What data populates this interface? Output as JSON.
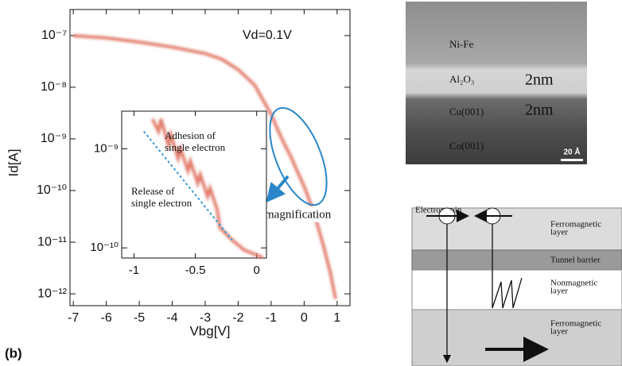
{
  "chart_data": [
    {
      "type": "line",
      "log_y": true,
      "xlabel": "Vbg[V]",
      "ylabel": "Id[A]",
      "annotations": [
        "Vd=0.1V",
        "magnification"
      ],
      "panel_label": "(b)",
      "xlim": [
        -7.1,
        1.39
      ],
      "xticks": [
        -7,
        -6,
        -5,
        -4,
        -3,
        -2,
        -1,
        0,
        1
      ],
      "ylim": [
        3.2e-07,
        5.9e-13
      ],
      "yticks": [
        {
          "value": 1e-07,
          "label": "10⁻⁷"
        },
        {
          "value": 1e-08,
          "label": "10⁻⁸"
        },
        {
          "value": 1e-09,
          "label": "10⁻⁹"
        },
        {
          "value": 1e-10,
          "label": "10⁻¹⁰"
        },
        {
          "value": 1e-11,
          "label": "10⁻¹¹"
        },
        {
          "value": 1e-12,
          "label": "10⁻¹²"
        }
      ],
      "series": [
        {
          "color": "#e27d6c",
          "dashed": false,
          "x": [
            -7,
            -6,
            -5,
            -4,
            -3,
            -2.5,
            -2,
            -1.5,
            -1.2,
            -1,
            -0.8,
            -0.6,
            -0.4,
            -0.2,
            0,
            0.2,
            0.4,
            0.6,
            0.8,
            0.95
          ],
          "values": [
            1e-07,
            9e-08,
            7.5e-08,
            6e-08,
            4.5e-08,
            3.5e-08,
            2.2e-08,
            1.1e-08,
            5e-09,
            3e-09,
            1.5e-09,
            8e-10,
            4.5e-10,
            2.3e-10,
            1.2e-10,
            5.5e-11,
            2.2e-11,
            8e-12,
            2.5e-12,
            8e-13
          ]
        }
      ]
    },
    {
      "type": "line",
      "log_y": true,
      "annotations": [
        [
          "Adhesion of",
          "single electron"
        ],
        [
          "Release of",
          "single electron"
        ]
      ],
      "xlim": [
        -1.1,
        0.08
      ],
      "xticks": [
        -1,
        -0.5,
        0
      ],
      "ylim": [
        2.4e-09,
        7.9e-11
      ],
      "yticks": [
        {
          "value": 1e-09,
          "label": "10⁻⁹"
        },
        {
          "value": 1e-10,
          "label": "10⁻¹⁰"
        }
      ],
      "series": [
        {
          "color": "#e27d6c",
          "dashed": false,
          "x": [
            -0.85,
            -0.8,
            -0.78,
            -0.72,
            -0.7,
            -0.64,
            -0.62,
            -0.56,
            -0.54,
            -0.48,
            -0.46,
            -0.4,
            -0.38,
            -0.32,
            -0.3,
            -0.2,
            -0.1,
            0.05
          ],
          "values": [
            2e-09,
            1.5e-09,
            2e-09,
            1.1e-09,
            1.4e-09,
            8e-10,
            1e-09,
            6e-10,
            7.5e-10,
            4.5e-10,
            5.5e-10,
            3.3e-10,
            4e-10,
            2.4e-10,
            1.6e-10,
            1.2e-10,
            9.5e-11,
            8e-11
          ]
        },
        {
          "color": "#3a9ad6",
          "dashed": true,
          "x": [
            -0.92,
            -0.2
          ],
          "values": [
            1.5e-09,
            1.2e-10
          ]
        }
      ]
    }
  ],
  "tem_image": {
    "labels": [
      "Ni-Fe",
      "Al₂O₃",
      "2nm",
      "Cu(001)",
      "2nm",
      "Co(001)"
    ],
    "scale_bar": "20 Å"
  },
  "diagram": {
    "title": "Electron spin",
    "layers": [
      [
        "Ferromagnetic",
        "layer"
      ],
      [
        "Tunnel barrier"
      ],
      [
        "Nonmagnetic",
        "layer"
      ],
      [
        "Ferromagnetic",
        "layer"
      ]
    ]
  }
}
